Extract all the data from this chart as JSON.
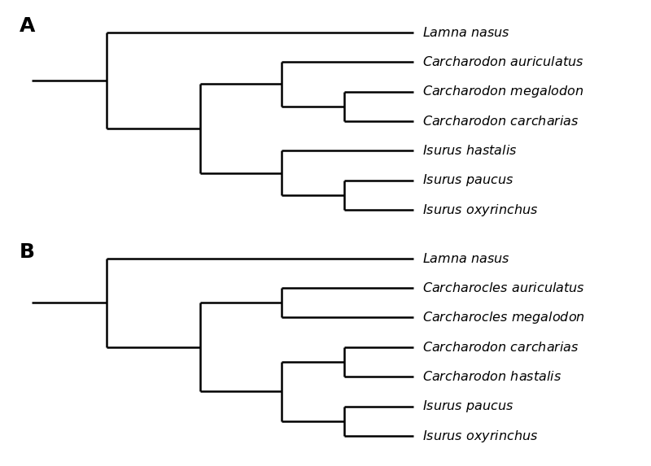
{
  "background_color": "#ffffff",
  "line_color": "#000000",
  "line_width": 1.8,
  "label_fontsize": 11.5,
  "panel_label_fontsize": 18,
  "tree_A": {
    "title": "A",
    "taxa": [
      "Lamna nasus",
      "Carcharodon auriculatus",
      "Carcharodon megalodon",
      "Carcharodon carcharias",
      "Isurus hastalis",
      "Isurus paucus",
      "Isurus oxyrinchus"
    ],
    "y_positions": [
      7,
      6,
      5,
      4,
      3,
      2,
      1
    ]
  },
  "tree_B": {
    "title": "B",
    "taxa": [
      "Lamna nasus",
      "Carcharocles auriculatus",
      "Carcharocles megalodon",
      "Carcharodon carcharias",
      "Carcharodon hastalis",
      "Isurus paucus",
      "Isurus oxyrinchus"
    ],
    "y_positions": [
      7,
      6,
      5,
      4,
      3,
      2,
      1
    ]
  }
}
